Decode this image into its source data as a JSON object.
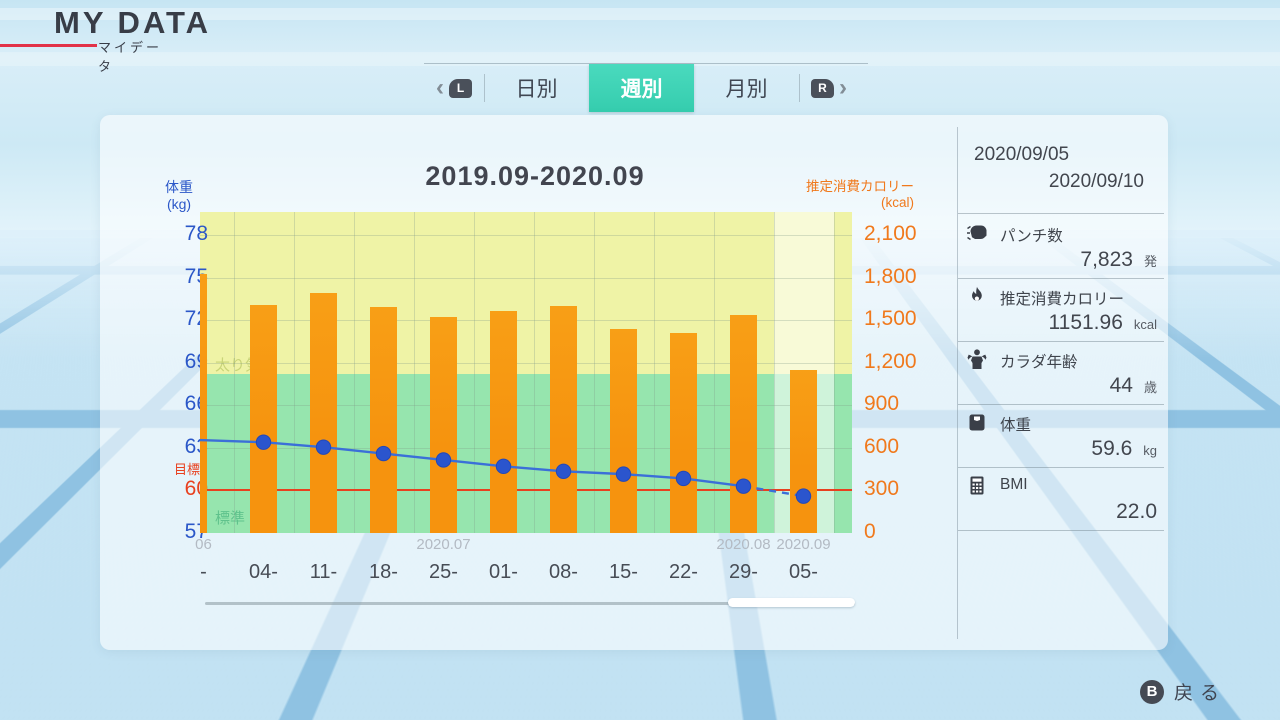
{
  "theme": {
    "ink": "#383d47",
    "header_red": "#e23248",
    "accent_teal": "#3ed1b2",
    "axis_blue": "#2b57c8",
    "axis_orange": "#f0791c",
    "bar_orange": "#f6930e",
    "line_blue": "#3b6fd8",
    "dot_blue": "#2b55cd",
    "goal_red": "#e8401f",
    "zone_yellow": "#eff3a6",
    "zone_green": "#96e5ae"
  },
  "header": {
    "title": "MY DATA",
    "subtitle": "マイデータ"
  },
  "tabs": {
    "prev_icon": "‹",
    "l_badge": "L",
    "r_badge": "R",
    "next_icon": "›",
    "items": [
      {
        "label": "日別",
        "selected": false
      },
      {
        "label": "週別",
        "selected": true
      },
      {
        "label": "月別",
        "selected": false
      }
    ]
  },
  "chart_data": {
    "type": "combo-bar-line",
    "title": "2019.09-2020.09",
    "left_axis": {
      "label": "体重",
      "unit": "(kg)",
      "ticks": [
        78,
        75,
        72,
        69,
        66,
        63,
        60,
        57
      ],
      "range": [
        57,
        79.63
      ],
      "goal_label": "目標",
      "goal_value": 60,
      "goal_tick_index": 6
    },
    "right_axis": {
      "label": "推定消費カロリー",
      "unit": "(kcal)",
      "tick_labels": [
        "2,100",
        "1,800",
        "1,500",
        "1,200",
        "900",
        "600",
        "300",
        "0"
      ],
      "tick_values": [
        2100,
        1800,
        1500,
        1200,
        900,
        600,
        300,
        0
      ],
      "range": [
        0,
        2262
      ]
    },
    "zones": {
      "upper_label": "太り気味",
      "lower_label": "標準",
      "boundary_weight": 68.2
    },
    "categories": [
      "-",
      "04-",
      "11-",
      "18-",
      "25-",
      "01-",
      "08-",
      "15-",
      "22-",
      "29-",
      "05-"
    ],
    "month_labels": [
      {
        "text": "06",
        "col": 0
      },
      {
        "text": "2020.07",
        "col": 4
      },
      {
        "text": "2020.08",
        "col": 9
      },
      {
        "text": "2020.09",
        "col": 10
      }
    ],
    "highlight_col": 10,
    "series": [
      {
        "name": "推定消費カロリー",
        "type": "bar",
        "values": [
          1822,
          1605,
          1690,
          1592,
          1520,
          1563,
          1600,
          1440,
          1408,
          1535,
          1152
        ]
      },
      {
        "name": "体重",
        "type": "line",
        "lead_in_value": 63.55,
        "dashed_last_segment": true,
        "values": [
          null,
          63.4,
          63.05,
          62.6,
          62.15,
          61.7,
          61.35,
          61.15,
          60.85,
          60.3,
          59.6
        ]
      }
    ],
    "legend_position": "none",
    "grid": true
  },
  "stats": {
    "date_range": [
      "2020/09/05",
      "2020/09/10"
    ],
    "sections": [
      {
        "icon": "boxing-glove",
        "label": "パンチ数",
        "value": "7,823",
        "unit": "発"
      },
      {
        "icon": "flame",
        "label": "推定消費カロリー",
        "value": "1151.96",
        "unit": "kcal"
      },
      {
        "icon": "muscle",
        "label": "カラダ年齢",
        "value": "44",
        "unit": "歳"
      },
      {
        "icon": "scale",
        "label": "体重",
        "value": "59.6",
        "unit": "kg"
      },
      {
        "icon": "calculator",
        "label": "BMI",
        "value": "22.0",
        "unit": ""
      }
    ]
  },
  "footer": {
    "button": "B",
    "back_label": "戻る"
  }
}
